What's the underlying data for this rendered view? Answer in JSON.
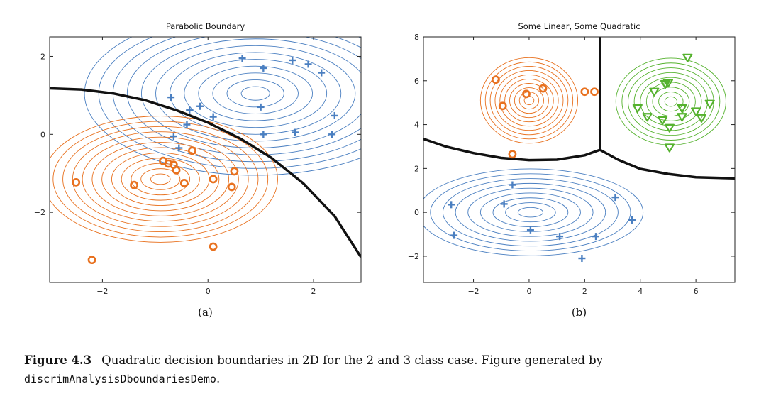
{
  "chart_data": [
    {
      "type": "scatter",
      "title": "Parabolic Boundary",
      "sublabel": "(a)",
      "xlim": [
        -3,
        2.9
      ],
      "ylim": [
        -3.8,
        2.5
      ],
      "xticks": [
        -2,
        0,
        2
      ],
      "yticks": [
        -2,
        0,
        2
      ],
      "grid": false,
      "boundary": [
        [
          -3,
          1.18
        ],
        [
          -2.4,
          1.15
        ],
        [
          -1.8,
          1.05
        ],
        [
          -1.2,
          0.88
        ],
        [
          -0.6,
          0.62
        ],
        [
          0,
          0.3
        ],
        [
          0.6,
          -0.1
        ],
        [
          1.2,
          -0.6
        ],
        [
          1.8,
          -1.25
        ],
        [
          2.4,
          -2.1
        ],
        [
          2.9,
          -3.15
        ]
      ],
      "series": [
        {
          "marker": "plus",
          "color": "#4a7fc1",
          "points": [
            [
              0.65,
              1.95
            ],
            [
              1.05,
              1.7
            ],
            [
              1.6,
              1.9
            ],
            [
              1.9,
              1.8
            ],
            [
              2.15,
              1.58
            ],
            [
              -0.7,
              0.95
            ],
            [
              -0.35,
              0.62
            ],
            [
              -0.15,
              0.72
            ],
            [
              0.1,
              0.45
            ],
            [
              1.0,
              0.7
            ],
            [
              2.4,
              0.48
            ],
            [
              -0.4,
              0.25
            ],
            [
              -0.65,
              -0.05
            ],
            [
              -0.55,
              -0.35
            ],
            [
              1.05,
              0.0
            ],
            [
              1.65,
              0.05
            ],
            [
              2.35,
              0.0
            ]
          ],
          "contours": {
            "cx": 0.9,
            "cy": 1.05,
            "rx_step": 0.27,
            "ry_step": 0.175,
            "count": 12
          }
        },
        {
          "marker": "circle",
          "color": "#e8711f",
          "points": [
            [
              -2.5,
              -1.23
            ],
            [
              -1.4,
              -1.3
            ],
            [
              -0.85,
              -0.68
            ],
            [
              -0.75,
              -0.75
            ],
            [
              -0.65,
              -0.78
            ],
            [
              -0.6,
              -0.92
            ],
            [
              -0.45,
              -1.25
            ],
            [
              -0.3,
              -0.42
            ],
            [
              0.1,
              -1.15
            ],
            [
              0.45,
              -1.35
            ],
            [
              0.5,
              -0.95
            ],
            [
              0.1,
              -2.88
            ],
            [
              -2.2,
              -3.22
            ]
          ],
          "contours": {
            "cx": -0.9,
            "cy": -1.15,
            "rx_step": 0.185,
            "ry_step": 0.135,
            "count": 12
          }
        }
      ]
    },
    {
      "type": "scatter",
      "title": "Some Linear, Some Quadratic",
      "sublabel": "(b)",
      "xlim": [
        -3.8,
        7.4
      ],
      "ylim": [
        -3.2,
        8.0
      ],
      "xticks": [
        -2,
        0,
        2,
        4,
        6
      ],
      "yticks": [
        -2,
        0,
        2,
        4,
        6,
        8
      ],
      "grid": false,
      "boundary": [
        [
          [
            -3.8,
            3.35
          ],
          [
            -3.0,
            3.0
          ],
          [
            -2.0,
            2.7
          ],
          [
            -1.0,
            2.48
          ],
          [
            0.0,
            2.38
          ],
          [
            1.0,
            2.4
          ],
          [
            2.0,
            2.6
          ],
          [
            2.55,
            2.85
          ],
          [
            3.2,
            2.4
          ],
          [
            4.0,
            1.98
          ],
          [
            5.0,
            1.75
          ],
          [
            6.0,
            1.6
          ],
          [
            7.4,
            1.55
          ]
        ],
        [
          [
            2.55,
            2.85
          ],
          [
            2.55,
            8.0
          ]
        ]
      ],
      "series": [
        {
          "marker": "circle",
          "color": "#e8711f",
          "points": [
            [
              -1.2,
              6.05
            ],
            [
              -0.95,
              4.85
            ],
            [
              -0.1,
              5.4
            ],
            [
              0.5,
              5.65
            ],
            [
              2.0,
              5.5
            ],
            [
              2.35,
              5.5
            ],
            [
              -0.6,
              2.65
            ]
          ],
          "contours": {
            "cx": 0.0,
            "cy": 5.1,
            "rx_step": 0.175,
            "ry_step": 0.195,
            "count": 10
          }
        },
        {
          "marker": "triangle",
          "color": "#55b22e",
          "points": [
            [
              5.7,
              7.05
            ],
            [
              4.9,
              5.85
            ],
            [
              5.0,
              5.9
            ],
            [
              4.5,
              5.5
            ],
            [
              3.9,
              4.75
            ],
            [
              4.25,
              4.35
            ],
            [
              4.8,
              4.2
            ],
            [
              5.05,
              3.85
            ],
            [
              5.5,
              4.75
            ],
            [
              6.0,
              4.6
            ],
            [
              6.5,
              4.95
            ],
            [
              6.2,
              4.3
            ],
            [
              5.05,
              2.95
            ],
            [
              5.5,
              4.35
            ]
          ],
          "contours": {
            "cx": 5.1,
            "cy": 5.05,
            "rx_step": 0.22,
            "ry_step": 0.22,
            "count": 9
          }
        },
        {
          "marker": "plus",
          "color": "#4a7fc1",
          "points": [
            [
              -0.6,
              1.25
            ],
            [
              -0.9,
              0.38
            ],
            [
              -2.8,
              0.35
            ],
            [
              -2.7,
              -1.05
            ],
            [
              0.05,
              -0.8
            ],
            [
              1.1,
              -1.1
            ],
            [
              2.4,
              -1.1
            ],
            [
              3.1,
              0.68
            ],
            [
              3.7,
              -0.35
            ],
            [
              1.9,
              -2.1
            ]
          ],
          "contours": {
            "cx": 0.05,
            "cy": 0.0,
            "rx_step": 0.45,
            "ry_step": 0.22,
            "count": 9
          }
        }
      ]
    }
  ],
  "caption": {
    "label": "Figure 4.3",
    "text": "Quadratic decision boundaries in 2D for the 2 and 3 class case.  Figure generated by",
    "code": "discrimAnalysisDboundariesDemo",
    "end": "."
  }
}
